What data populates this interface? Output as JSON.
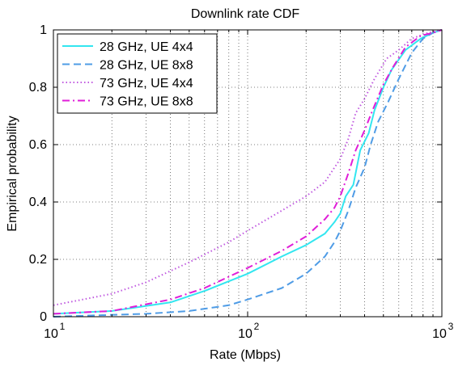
{
  "chart_data": {
    "type": "line",
    "title": "Downlink rate CDF",
    "xlabel": "Rate (Mbps)",
    "ylabel": "Empirical probability",
    "xscale": "log",
    "xlim": [
      10,
      1000
    ],
    "ylim": [
      0,
      1
    ],
    "x_tick_labels": [
      {
        "value": 10,
        "base": "10",
        "exp": "1"
      },
      {
        "value": 100,
        "base": "10",
        "exp": "2"
      },
      {
        "value": 1000,
        "base": "10",
        "exp": "3"
      }
    ],
    "y_tick_labels": [
      "0",
      "0.2",
      "0.4",
      "0.6",
      "0.8",
      "1"
    ],
    "y_ticks": [
      0,
      0.2,
      0.4,
      0.6,
      0.8,
      1
    ],
    "grid": true,
    "legend_position": "top-left",
    "series": [
      {
        "name": "28 GHz, UE 4x4",
        "color": "#33e6f0",
        "dash": "solid",
        "points": [
          [
            10,
            0.01
          ],
          [
            20,
            0.02
          ],
          [
            40,
            0.05
          ],
          [
            60,
            0.09
          ],
          [
            100,
            0.15
          ],
          [
            150,
            0.21
          ],
          [
            200,
            0.25
          ],
          [
            250,
            0.29
          ],
          [
            280,
            0.33
          ],
          [
            300,
            0.36
          ],
          [
            320,
            0.42
          ],
          [
            350,
            0.46
          ],
          [
            380,
            0.58
          ],
          [
            420,
            0.64
          ],
          [
            450,
            0.72
          ],
          [
            500,
            0.8
          ],
          [
            550,
            0.86
          ],
          [
            650,
            0.93
          ],
          [
            780,
            0.97
          ],
          [
            900,
            0.99
          ],
          [
            1000,
            1.0
          ]
        ]
      },
      {
        "name": "28 GHz, UE 8x8",
        "color": "#4f9ce6",
        "dash": "dashed",
        "points": [
          [
            10,
            0.0
          ],
          [
            30,
            0.01
          ],
          [
            50,
            0.02
          ],
          [
            80,
            0.04
          ],
          [
            100,
            0.06
          ],
          [
            150,
            0.1
          ],
          [
            200,
            0.15
          ],
          [
            250,
            0.21
          ],
          [
            280,
            0.26
          ],
          [
            300,
            0.3
          ],
          [
            330,
            0.37
          ],
          [
            360,
            0.45
          ],
          [
            400,
            0.52
          ],
          [
            430,
            0.6
          ],
          [
            470,
            0.68
          ],
          [
            530,
            0.75
          ],
          [
            600,
            0.83
          ],
          [
            700,
            0.92
          ],
          [
            800,
            0.97
          ],
          [
            900,
            0.99
          ],
          [
            1000,
            1.0
          ]
        ]
      },
      {
        "name": "73 GHz, UE 4x4",
        "color": "#c05ae0",
        "dash": "dotted",
        "points": [
          [
            10,
            0.04
          ],
          [
            20,
            0.08
          ],
          [
            30,
            0.12
          ],
          [
            50,
            0.19
          ],
          [
            80,
            0.26
          ],
          [
            100,
            0.3
          ],
          [
            150,
            0.37
          ],
          [
            200,
            0.42
          ],
          [
            250,
            0.47
          ],
          [
            280,
            0.52
          ],
          [
            300,
            0.55
          ],
          [
            330,
            0.62
          ],
          [
            360,
            0.71
          ],
          [
            400,
            0.76
          ],
          [
            450,
            0.83
          ],
          [
            520,
            0.9
          ],
          [
            600,
            0.93
          ],
          [
            700,
            0.97
          ],
          [
            850,
            0.99
          ],
          [
            1000,
            1.0
          ]
        ]
      },
      {
        "name": "73 GHz, UE 8x8",
        "color": "#e01ed8",
        "dash": "dashdot",
        "points": [
          [
            10,
            0.01
          ],
          [
            20,
            0.02
          ],
          [
            40,
            0.06
          ],
          [
            60,
            0.1
          ],
          [
            100,
            0.17
          ],
          [
            150,
            0.23
          ],
          [
            200,
            0.28
          ],
          [
            250,
            0.34
          ],
          [
            280,
            0.38
          ],
          [
            300,
            0.42
          ],
          [
            330,
            0.5
          ],
          [
            360,
            0.58
          ],
          [
            400,
            0.65
          ],
          [
            440,
            0.72
          ],
          [
            500,
            0.81
          ],
          [
            560,
            0.87
          ],
          [
            650,
            0.94
          ],
          [
            780,
            0.98
          ],
          [
            900,
            0.99
          ],
          [
            1000,
            1.0
          ]
        ]
      }
    ]
  }
}
